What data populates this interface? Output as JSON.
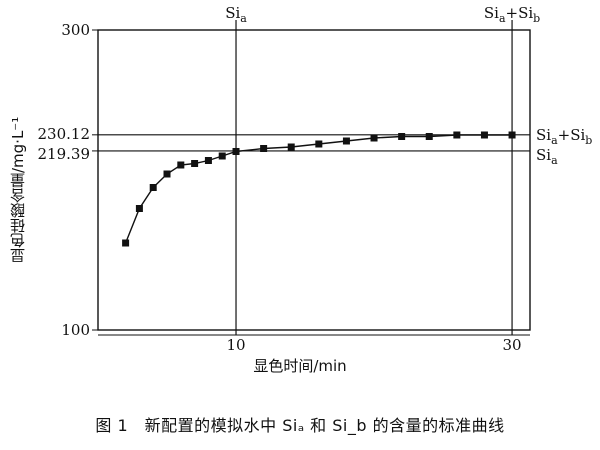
{
  "chart_data": {
    "type": "line",
    "xlabel": "显色时间/min",
    "ylabel": "显色硅酸含量/mg·L⁻¹",
    "caption": "图 1　新配置的模拟水中 Siₐ 和 Si_b 的含量的标准曲线",
    "xlim": [
      0,
      31.3
    ],
    "ylim": [
      100,
      300
    ],
    "x_ticks": [
      {
        "value": 10,
        "label": "10"
      },
      {
        "value": 30,
        "label": "30"
      }
    ],
    "y_ticks": [
      {
        "value": 300,
        "label": "300"
      },
      {
        "value": 230.12,
        "label": "230.12"
      },
      {
        "value": 219.39,
        "label": "219.39"
      },
      {
        "value": 100,
        "label": "100"
      }
    ],
    "vlines": [
      {
        "x": 10,
        "label_main": "Si",
        "label_sub": "a",
        "label_rest": ""
      },
      {
        "x": 30,
        "label_main": "Si",
        "label_sub": "a",
        "label_rest": "+Si",
        "label_sub2": "b"
      }
    ],
    "hlines": [
      {
        "y": 230.12,
        "label_main": "Si",
        "label_sub": "a",
        "label_rest": "+Si",
        "label_sub2": "b"
      },
      {
        "y": 219.39,
        "label_main": "Si",
        "label_sub": "a",
        "label_rest": ""
      }
    ],
    "series": [
      {
        "x": [
          2,
          3,
          4,
          5,
          6,
          7,
          8,
          9,
          10,
          12,
          14,
          16,
          18,
          20,
          22,
          24,
          26,
          28,
          30
        ],
        "values": [
          158,
          181,
          195,
          204,
          210,
          211,
          213,
          216,
          219,
          221,
          222,
          224,
          226,
          228,
          229,
          229,
          230,
          230,
          230
        ]
      }
    ]
  }
}
